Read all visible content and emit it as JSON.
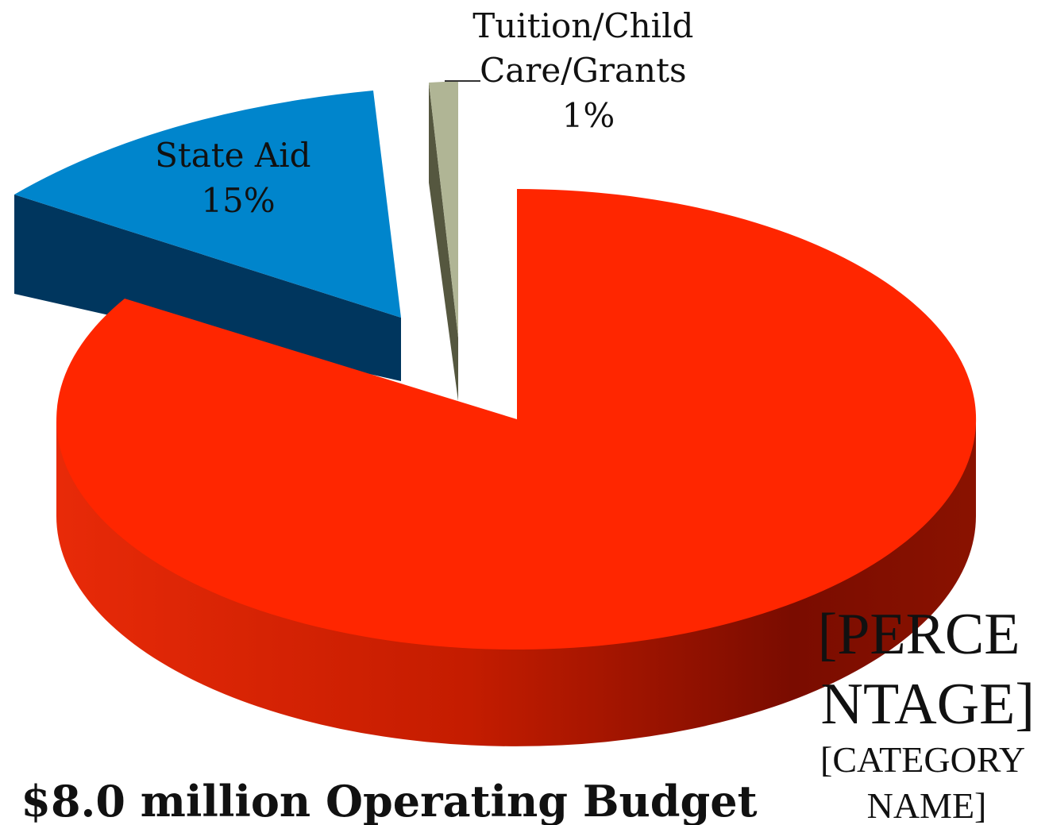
{
  "chart_data": {
    "type": "pie",
    "style": "3d-exploded",
    "title": "$8.0 million Operating Budget",
    "slices": [
      {
        "label_lines": [
          "[PERCE",
          "NTAGE]"
        ],
        "sublabel_lines": [
          "[CATEGORY",
          "NAME]"
        ],
        "value": 84,
        "color": "#ff2600",
        "side_color": "#b51a00"
      },
      {
        "label_lines": [
          "State Aid"
        ],
        "percent_label": "15%",
        "value": 15,
        "color": "#0085cc",
        "side_color": "#00365e"
      },
      {
        "label_lines": [
          "Tuition/Child",
          "Care/Grants"
        ],
        "percent_label": "1%",
        "value": 1,
        "color": "#b0b595",
        "side_color": "#55573f"
      }
    ]
  }
}
